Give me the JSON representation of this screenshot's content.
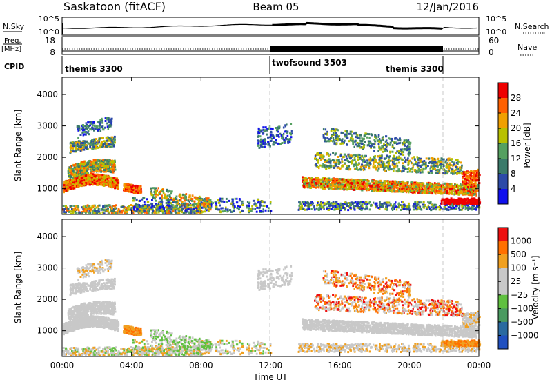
{
  "header": {
    "station": "Saskatoon (fitACF)",
    "beam": "Beam 05",
    "date": "12/Jan/2016"
  },
  "strip_nsky": {
    "left_label": "N.Sky",
    "right_label": "N.Search",
    "left_ticks": [
      "10^5",
      "10^0"
    ],
    "right_ticks": [
      "10^5",
      "10^0"
    ]
  },
  "strip_freq": {
    "left_label_line1": "Freq.",
    "left_label_line2": "[MHz]",
    "right_label": "Nave",
    "left_ticks": [
      "18",
      "8"
    ],
    "right_ticks": [
      "60",
      "0"
    ]
  },
  "cpid": {
    "label": "CPID",
    "segments": [
      {
        "name": "themis 3300",
        "start_hour": 0,
        "end_hour": 12
      },
      {
        "name": "twofsound 3503",
        "start_hour": 12,
        "end_hour": 22
      },
      {
        "name": "themis 3300",
        "start_hour": 22,
        "end_hour": 24
      }
    ]
  },
  "colors": {
    "power_scale": [
      "#1010ee",
      "#2c4aa8",
      "#3a7a6a",
      "#55a060",
      "#b8c000",
      "#f0a000",
      "#ff6000",
      "#ee0000"
    ],
    "velocity_scale": [
      "#2050c0",
      "#2a6aa0",
      "#4a9a60",
      "#60c040",
      "#c8c8c8",
      "#c8c8c8",
      "#f0a020",
      "#ff7000",
      "#ee1010"
    ],
    "grid": "#c8c8c8"
  },
  "chart_data": [
    {
      "type": "heatmap",
      "panel": "power",
      "ylabel": "Slant Range [km]",
      "ylim": [
        180,
        4550
      ],
      "yticks": [
        1000,
        2000,
        3000,
        4000
      ],
      "xlim_hours": [
        0,
        24
      ],
      "colorbar_label": "Power [dB]",
      "colorbar_ticks": [
        "28",
        "24",
        "20",
        "16",
        "12",
        "8",
        "4"
      ],
      "colorbar_range": [
        0,
        32
      ]
    },
    {
      "type": "heatmap",
      "panel": "velocity",
      "ylabel": "Slant Range [km]",
      "ylim": [
        180,
        4550
      ],
      "yticks": [
        1000,
        2000,
        3000,
        4000
      ],
      "xlim_hours": [
        0,
        24
      ],
      "colorbar_label": "Velocity [m s⁻¹]",
      "colorbar_ticks": [
        "1000",
        "500",
        "100",
        "25",
        "−25",
        "−100",
        "−500",
        "−1000"
      ],
      "xlabel": "Time UT",
      "xtick_labels": [
        "00:00",
        "04:00",
        "08:00",
        "12:00",
        "16:00",
        "20:00",
        "00:00"
      ],
      "xtick_hours": [
        0,
        4,
        8,
        12,
        16,
        20,
        24
      ]
    }
  ]
}
